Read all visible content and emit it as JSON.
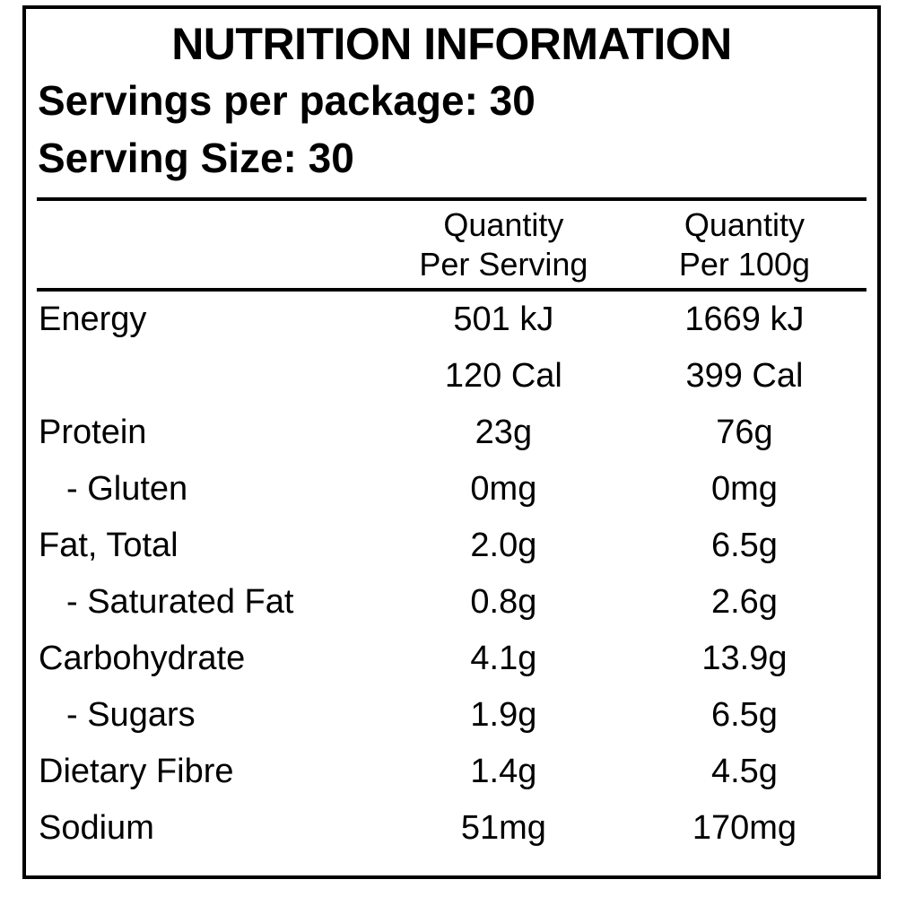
{
  "label": {
    "title": "NUTRITION INFORMATION",
    "servings_per_package": "Servings per package: 30",
    "serving_size": "Serving Size: 30"
  },
  "columns": {
    "per_serving": {
      "line1": "Quantity",
      "line2": "Per Serving"
    },
    "per_100g": {
      "line1": "Quantity",
      "line2": "Per 100g"
    }
  },
  "rows": [
    {
      "label": "Energy",
      "per_serving": "501 kJ",
      "per_100g": "1669 kJ"
    },
    {
      "label": "",
      "per_serving": "120 Cal",
      "per_100g": "399 Cal"
    },
    {
      "label": "Protein",
      "per_serving": "23g",
      "per_100g": "76g"
    },
    {
      "label": "- Gluten",
      "per_serving": "0mg",
      "per_100g": "0mg",
      "indent": true
    },
    {
      "label": "Fat, Total",
      "per_serving": "2.0g",
      "per_100g": "6.5g"
    },
    {
      "label": "- Saturated Fat",
      "per_serving": "0.8g",
      "per_100g": "2.6g",
      "indent": true
    },
    {
      "label": "Carbohydrate",
      "per_serving": "4.1g",
      "per_100g": "13.9g"
    },
    {
      "label": "- Sugars",
      "per_serving": "1.9g",
      "per_100g": "6.5g",
      "indent": true
    },
    {
      "label": "Dietary Fibre",
      "per_serving": "1.4g",
      "per_100g": "4.5g"
    },
    {
      "label": "Sodium",
      "per_serving": "51mg",
      "per_100g": "170mg"
    }
  ],
  "colors": {
    "text": "#000000",
    "background": "#ffffff",
    "border": "#000000"
  }
}
